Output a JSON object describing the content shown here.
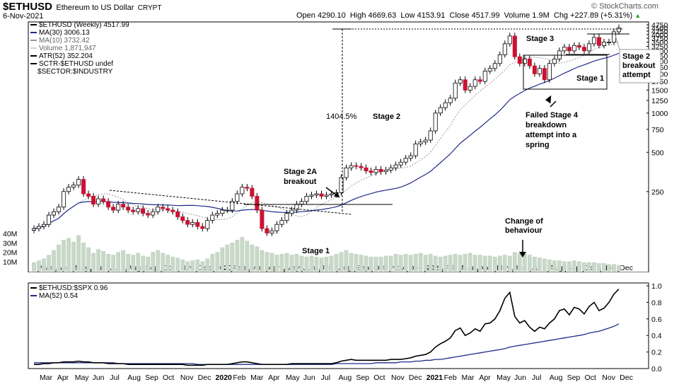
{
  "header": {
    "ticker": "$ETHUSD",
    "name": "Ethereum to US Dollar",
    "exchange": "CRYPT",
    "date": "6-Nov-2021",
    "ohlc": "Open 4290.10  High 4669.63  Low 4153.91  Close 4517.99  Volume 1.9M  Chg +227.89 (+5.31%)",
    "change_arrow": "▲",
    "watermark": "© StockCharts.com"
  },
  "legend": {
    "price": "$ETHUSD (Weekly) 4517.99",
    "ma30": "MA(30) 3006.13",
    "ma10": "MA(10) 3732.42",
    "volume": "Volume 1,871,947",
    "atr": "ATR(52) 352.204",
    "sctr1": "SCTR-$ETHUSD undef",
    "sctr2": "$SECTOR:$INDUSTRY"
  },
  "indicator_legend": {
    "ratio": "$ETHUSD:$SPX 0.96",
    "ma52": "MA(52) 0.54"
  },
  "annotations": {
    "stage2a": [
      "Stage 2A",
      "breakout"
    ],
    "stage2": "Stage 2",
    "stage3": "Stage 3",
    "stage1_left": "Stage 1",
    "stage1_right": "Stage 1",
    "pct": "1404.5%",
    "failed": [
      "Failed Stage 4",
      "breakdown",
      "attempt into a",
      "spring"
    ],
    "change": [
      "Change of",
      "behaviour"
    ],
    "stage2_breakout": [
      "Stage 2",
      "breakout",
      "attempt"
    ]
  },
  "colors": {
    "up": "#000000",
    "down": "#cc1133",
    "ma30": "#1f2a8a",
    "ma10": "#999999",
    "volume": "#c9d9c9",
    "ratio": "#000000",
    "ratio_ma": "#1f2a8a",
    "up_arrow": "#2f9e2f"
  },
  "chart_data": [
    {
      "type": "candlestick",
      "title": "$ETHUSD Ethereum to US Dollar CRYPT (Weekly)",
      "y_scale": "log",
      "ylim": [
        60,
        5000
      ],
      "price_ticks": [
        250,
        500,
        750,
        1000,
        1250,
        1500,
        1750,
        2000,
        2250,
        2500,
        2750,
        3000,
        3250,
        3500,
        3750,
        4000,
        4250,
        4500,
        4750
      ],
      "price_tick_labels": [
        "250",
        "500",
        "750",
        "1000",
        "1250",
        "1500",
        "1750",
        "2000",
        "2250",
        "2500",
        "2750",
        "3000",
        "3250",
        "3500",
        "3750",
        "4000",
        "4250",
        "4500",
        "4750"
      ],
      "volume_ticks": [
        10,
        20,
        30,
        40
      ],
      "volume_tick_labels": [
        "10M",
        "20M",
        "30M",
        "40M"
      ],
      "x_labels": [
        "Mar",
        "Apr",
        "May",
        "Jun",
        "Jul",
        "Aug",
        "Sep",
        "Oct",
        "Nov",
        "Dec",
        "2020",
        "Feb",
        "Mar",
        "Apr",
        "May",
        "Jun",
        "Jul",
        "Aug",
        "Sep",
        "Oct",
        "Nov",
        "Dec",
        "2021",
        "Feb",
        "Mar",
        "Apr",
        "May",
        "Jun",
        "Jul",
        "Aug",
        "Sep",
        "Oct",
        "Nov",
        "Dec"
      ],
      "bold_x_labels": [
        "2020",
        "2021"
      ],
      "close": [
        130,
        135,
        140,
        165,
        175,
        190,
        250,
        270,
        280,
        310,
        240,
        230,
        200,
        220,
        210,
        190,
        180,
        200,
        190,
        180,
        175,
        185,
        170,
        165,
        175,
        190,
        185,
        180,
        175,
        160,
        150,
        140,
        145,
        135,
        130,
        150,
        165,
        170,
        180,
        180,
        210,
        240,
        270,
        265,
        230,
        180,
        130,
        120,
        125,
        140,
        150,
        170,
        180,
        200,
        210,
        230,
        235,
        240,
        230,
        235,
        240,
        245,
        320,
        380,
        395,
        390,
        380,
        360,
        350,
        370,
        355,
        365,
        380,
        400,
        420,
        450,
        470,
        580,
        600,
        620,
        730,
        1000,
        1100,
        1200,
        1300,
        1700,
        1800,
        1500,
        1600,
        1800,
        1750,
        2100,
        2200,
        2400,
        2800,
        3400,
        3900,
        2700,
        2400,
        2600,
        2300,
        2000,
        2200,
        1800,
        2400,
        2600,
        3000,
        3200,
        3000,
        3300,
        3200,
        3000,
        3400,
        3800,
        3300,
        3500,
        3500,
        4200,
        4500
      ],
      "volume": [
        9,
        11,
        13,
        17,
        22,
        28,
        33,
        35,
        31,
        38,
        30,
        25,
        19,
        23,
        21,
        18,
        17,
        20,
        22,
        18,
        17,
        19,
        16,
        15,
        20,
        22,
        19,
        17,
        15,
        14,
        12,
        10,
        11,
        12,
        10,
        13,
        18,
        20,
        25,
        28,
        30,
        33,
        36,
        32,
        28,
        26,
        22,
        20,
        19,
        17,
        18,
        19,
        17,
        18,
        16,
        15,
        16,
        15,
        14,
        15,
        16,
        18,
        20,
        22,
        19,
        18,
        17,
        16,
        15,
        15,
        15,
        16,
        16,
        18,
        17,
        18,
        17,
        18,
        19,
        17,
        18,
        16,
        15,
        16,
        17,
        18,
        17,
        18,
        19,
        17,
        17,
        16,
        16,
        15,
        16,
        17,
        16,
        20,
        19,
        18,
        17,
        15,
        14,
        13,
        12,
        11,
        11,
        10,
        10,
        11,
        10,
        9,
        9,
        9,
        8,
        8,
        7,
        7,
        6
      ]
    },
    {
      "type": "line",
      "title": "$ETHUSD:$SPX",
      "ylim": [
        0,
        1.0
      ],
      "y_ticks": [
        0.0,
        0.2,
        0.4,
        0.6,
        0.8,
        1.0
      ],
      "y_tick_labels": [
        "0.0",
        "0.2",
        "0.4",
        "0.6",
        "0.8",
        "1.0"
      ],
      "series": [
        {
          "name": "$ETHUSD:$SPX",
          "values": [
            0.05,
            0.05,
            0.06,
            0.06,
            0.07,
            0.07,
            0.08,
            0.08,
            0.08,
            0.09,
            0.08,
            0.08,
            0.07,
            0.07,
            0.07,
            0.06,
            0.06,
            0.06,
            0.06,
            0.05,
            0.05,
            0.05,
            0.05,
            0.05,
            0.05,
            0.05,
            0.05,
            0.05,
            0.05,
            0.05,
            0.05,
            0.04,
            0.04,
            0.04,
            0.04,
            0.05,
            0.05,
            0.05,
            0.05,
            0.05,
            0.06,
            0.07,
            0.08,
            0.08,
            0.07,
            0.06,
            0.05,
            0.05,
            0.05,
            0.05,
            0.05,
            0.05,
            0.06,
            0.06,
            0.06,
            0.06,
            0.06,
            0.06,
            0.06,
            0.06,
            0.06,
            0.07,
            0.09,
            0.1,
            0.11,
            0.1,
            0.1,
            0.1,
            0.1,
            0.1,
            0.1,
            0.1,
            0.11,
            0.11,
            0.11,
            0.12,
            0.13,
            0.15,
            0.16,
            0.17,
            0.2,
            0.26,
            0.3,
            0.33,
            0.37,
            0.46,
            0.49,
            0.4,
            0.43,
            0.48,
            0.45,
            0.54,
            0.55,
            0.6,
            0.7,
            0.85,
            0.92,
            0.63,
            0.55,
            0.58,
            0.5,
            0.45,
            0.5,
            0.48,
            0.55,
            0.6,
            0.7,
            0.72,
            0.65,
            0.74,
            0.72,
            0.66,
            0.75,
            0.8,
            0.7,
            0.73,
            0.8,
            0.9,
            0.96
          ]
        },
        {
          "name": "MA(52)",
          "values": [
            0.07,
            0.07,
            0.07,
            0.07,
            0.07,
            0.07,
            0.07,
            0.07,
            0.07,
            0.07,
            0.07,
            0.07,
            0.07,
            0.07,
            0.07,
            0.07,
            0.07,
            0.06,
            0.06,
            0.06,
            0.06,
            0.06,
            0.06,
            0.06,
            0.06,
            0.06,
            0.06,
            0.06,
            0.06,
            0.06,
            0.06,
            0.06,
            0.06,
            0.05,
            0.05,
            0.05,
            0.05,
            0.05,
            0.05,
            0.05,
            0.05,
            0.05,
            0.05,
            0.05,
            0.05,
            0.05,
            0.05,
            0.05,
            0.05,
            0.05,
            0.05,
            0.05,
            0.05,
            0.05,
            0.05,
            0.05,
            0.05,
            0.05,
            0.05,
            0.05,
            0.05,
            0.06,
            0.06,
            0.06,
            0.06,
            0.06,
            0.06,
            0.06,
            0.06,
            0.07,
            0.07,
            0.07,
            0.07,
            0.07,
            0.08,
            0.08,
            0.08,
            0.09,
            0.09,
            0.1,
            0.1,
            0.11,
            0.11,
            0.12,
            0.13,
            0.14,
            0.15,
            0.16,
            0.17,
            0.18,
            0.19,
            0.2,
            0.21,
            0.22,
            0.23,
            0.24,
            0.26,
            0.27,
            0.28,
            0.29,
            0.3,
            0.31,
            0.32,
            0.33,
            0.34,
            0.35,
            0.36,
            0.37,
            0.38,
            0.39,
            0.4,
            0.41,
            0.43,
            0.44,
            0.45,
            0.47,
            0.49,
            0.51,
            0.54
          ]
        }
      ]
    }
  ]
}
